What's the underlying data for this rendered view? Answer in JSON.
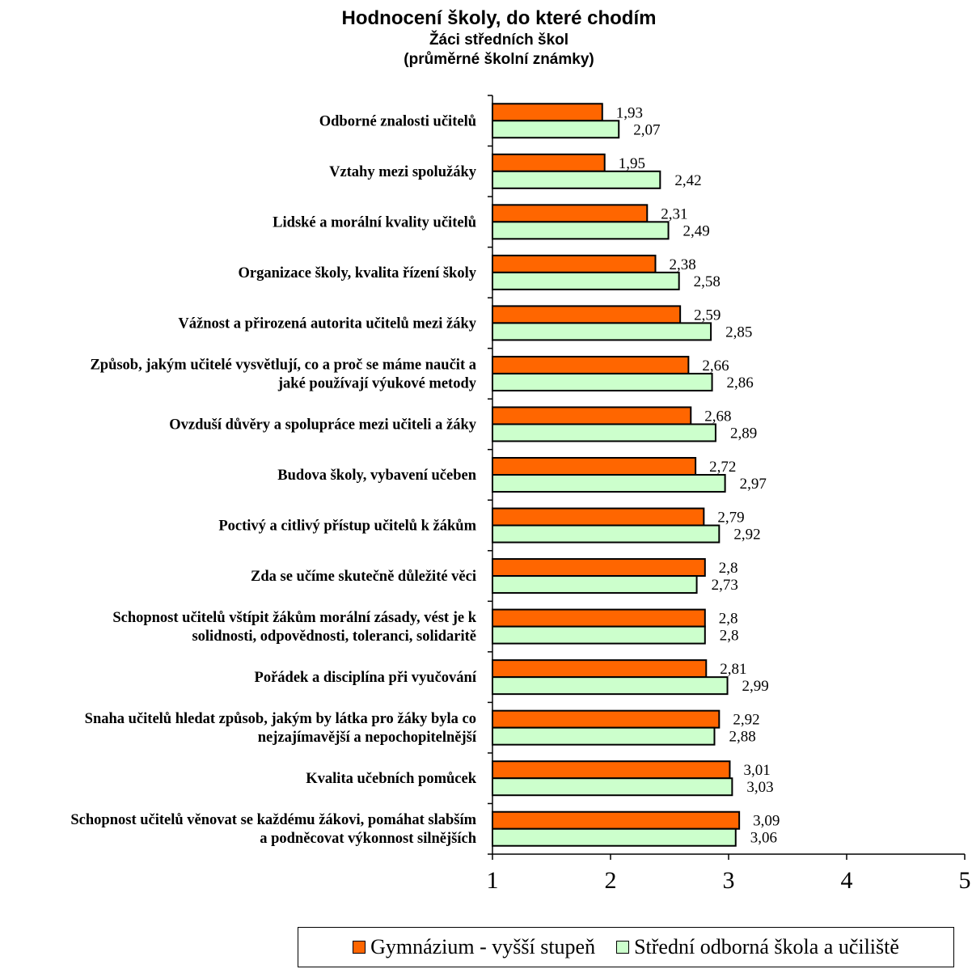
{
  "title": "Hodnocení školy, do které chodím",
  "subtitle1": "Žáci středních škol",
  "subtitle2": "(průměrné školní známky)",
  "colors": {
    "series1": "#ff6600",
    "series2": "#ccffcc",
    "stroke": "#000000"
  },
  "chart_data": {
    "type": "bar",
    "orientation": "horizontal",
    "categories": [
      [
        "Odborné znalosti učitelů"
      ],
      [
        "Vztahy mezi spolužáky"
      ],
      [
        "Lidské a morální kvality učitelů"
      ],
      [
        "Organizace školy, kvalita řízení školy"
      ],
      [
        "Vážnost a přirozená autorita učitelů mezi žáky"
      ],
      [
        "Způsob, jakým učitelé vysvětlují, co a proč se máme naučit a",
        "jaké používají výukové metody"
      ],
      [
        "Ovzduší důvěry a spolupráce mezi učiteli a žáky"
      ],
      [
        "Budova školy, vybavení učeben"
      ],
      [
        "Poctivý a citlivý přístup učitelů k žákům"
      ],
      [
        "Zda se učíme skutečně důležité věci"
      ],
      [
        "Schopnost učitelů vštípit žákům morální zásady, vést je k",
        "solidnosti, odpovědnosti, toleranci, solidaritě"
      ],
      [
        "Pořádek a disciplína při vyučování"
      ],
      [
        "Snaha učitelů hledat způsob, jakým by látka pro žáky byla co",
        "nejzajímavější a nepochopitelnější"
      ],
      [
        "Kvalita učebních pomůcek"
      ],
      [
        "Schopnost učitelů věnovat se každému žákovi, pomáhat slabším",
        "a podněcovat výkonnost silnějších"
      ]
    ],
    "series": [
      {
        "name": "Gymnázium - vyšší stupeň",
        "values": [
          1.93,
          1.95,
          2.31,
          2.38,
          2.59,
          2.66,
          2.68,
          2.72,
          2.79,
          2.8,
          2.8,
          2.81,
          2.92,
          3.01,
          3.09
        ],
        "labels": [
          "1,93",
          "1,95",
          "2,31",
          "2,38",
          "2,59",
          "2,66",
          "2,68",
          "2,72",
          "2,79",
          "2,8",
          "2,8",
          "2,81",
          "2,92",
          "3,01",
          "3,09"
        ]
      },
      {
        "name": "Střední odborná škola a učiliště",
        "values": [
          2.07,
          2.42,
          2.49,
          2.58,
          2.85,
          2.86,
          2.89,
          2.97,
          2.92,
          2.73,
          2.8,
          2.99,
          2.88,
          3.03,
          3.06
        ],
        "labels": [
          "2,07",
          "2,42",
          "2,49",
          "2,58",
          "2,85",
          "2,86",
          "2,89",
          "2,97",
          "2,92",
          "2,73",
          "2,8",
          "2,99",
          "2,88",
          "3,03",
          "3,06"
        ]
      }
    ],
    "xlim": [
      1,
      5
    ],
    "xticks": [
      "1",
      "2",
      "3",
      "4",
      "5"
    ],
    "grid": false,
    "legend": "bottom"
  }
}
